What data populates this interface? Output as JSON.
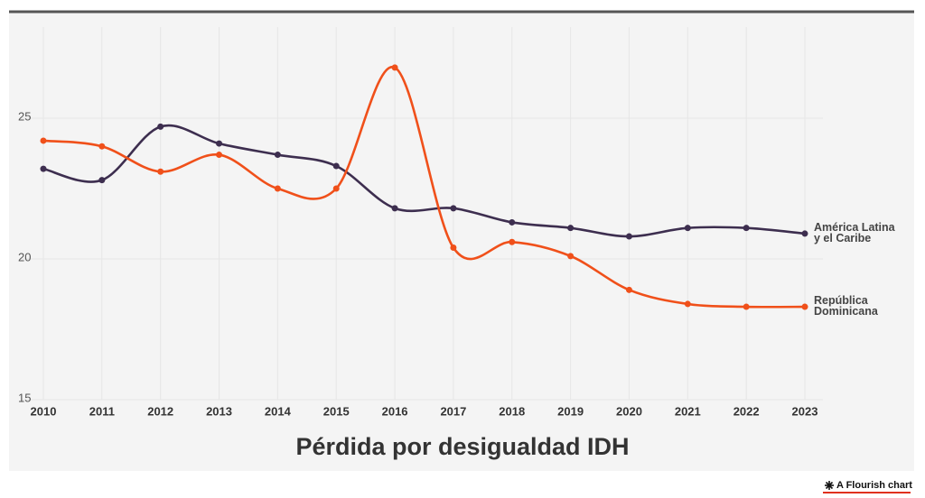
{
  "chart_data": {
    "type": "line",
    "title": "Pérdida por desigualdad IDH",
    "footer": "A Flourish chart",
    "x": [
      2010,
      2011,
      2012,
      2013,
      2014,
      2015,
      2016,
      2017,
      2018,
      2019,
      2020,
      2021,
      2022,
      2023
    ],
    "xlim": [
      2010,
      2023
    ],
    "ylim": [
      15,
      28
    ],
    "yticks": [
      15,
      20,
      25
    ],
    "grid": true,
    "series": [
      {
        "name": "América Latina y el Caribe",
        "color": "#3d2e4f",
        "values": [
          23.2,
          22.8,
          24.7,
          24.1,
          23.7,
          23.3,
          21.8,
          21.8,
          21.3,
          21.1,
          20.8,
          21.1,
          21.1,
          20.9
        ]
      },
      {
        "name": "República Dominicana",
        "color": "#f0501a",
        "values": [
          24.2,
          24.0,
          23.1,
          23.7,
          22.5,
          22.5,
          26.8,
          20.4,
          20.6,
          20.1,
          18.9,
          18.4,
          18.3,
          18.3
        ]
      }
    ]
  }
}
